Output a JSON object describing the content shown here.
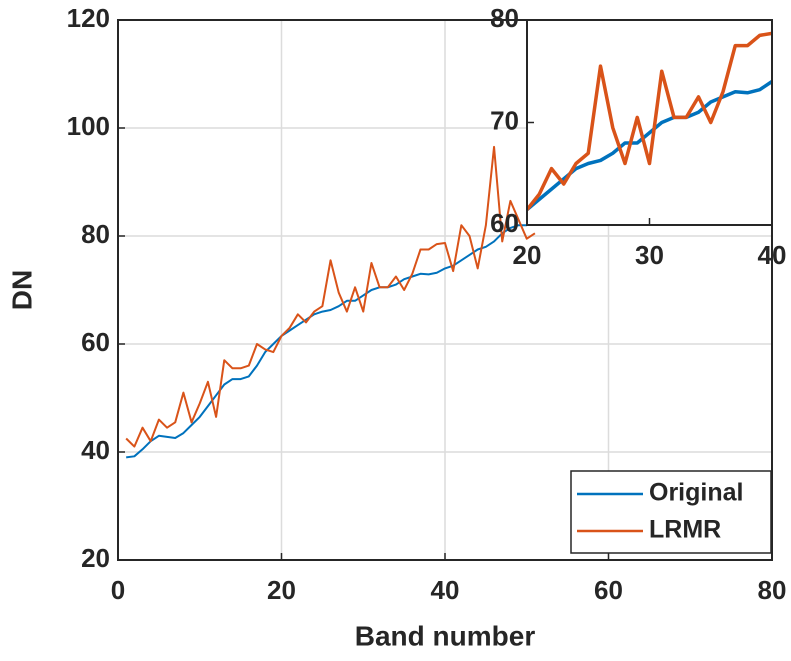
{
  "chart_data": [
    {
      "type": "line",
      "xlabel": "Band number",
      "ylabel": "DN",
      "x": [
        1,
        2,
        3,
        4,
        5,
        6,
        7,
        8,
        9,
        10,
        11,
        12,
        13,
        14,
        15,
        16,
        17,
        18,
        19,
        20,
        21,
        22,
        23,
        24,
        25,
        26,
        27,
        28,
        29,
        30,
        31,
        32,
        33,
        34,
        35,
        36,
        37,
        38,
        39,
        40,
        41,
        42,
        43,
        44,
        45,
        46,
        47,
        48,
        49,
        50,
        51
      ],
      "series": [
        {
          "name": "Original",
          "color": "#0072BD",
          "values": [
            39,
            39.2,
            40.5,
            42,
            43,
            42.8,
            42.6,
            43.5,
            45,
            46.5,
            48.5,
            50.5,
            52.5,
            53.5,
            53.5,
            54,
            56,
            58.5,
            60,
            61.5,
            62.5,
            63.5,
            64.5,
            65.5,
            66,
            66.3,
            67,
            68,
            68,
            69,
            70,
            70.5,
            70.5,
            71,
            72,
            72.5,
            73,
            72.9,
            73.2,
            74,
            74.5,
            75.5,
            76.5,
            77.5,
            78,
            79,
            80.5,
            81.5,
            82,
            82,
            82.5
          ]
        },
        {
          "name": "LRMR",
          "color": "#D95319",
          "values": [
            42.5,
            41,
            44.5,
            42,
            46,
            44.5,
            45.5,
            51,
            45.5,
            49,
            53,
            46.5,
            57,
            55.5,
            55.5,
            56,
            60,
            59,
            58.5,
            61.5,
            63,
            65.5,
            64,
            66,
            67,
            75.5,
            69.5,
            66,
            70.5,
            66,
            75,
            70.5,
            70.5,
            72.5,
            70,
            73,
            77.5,
            77.5,
            78.5,
            78.7,
            73.5,
            82,
            80,
            74,
            82,
            96.5,
            79,
            86.5,
            83,
            79.5,
            80.5
          ]
        }
      ],
      "xlim": [
        0,
        80
      ],
      "xticks": [
        0,
        20,
        40,
        60,
        80
      ],
      "ylim": [
        20,
        120
      ],
      "yticks": [
        20,
        40,
        60,
        80,
        100,
        120
      ],
      "grid": true,
      "legend": "lower right"
    },
    {
      "type": "line",
      "x": [
        20,
        21,
        22,
        23,
        24,
        25,
        26,
        27,
        28,
        29,
        30,
        31,
        32,
        33,
        34,
        35,
        36,
        37,
        38,
        39,
        40
      ],
      "series": [
        {
          "color": "#0072BD",
          "values": [
            61.5,
            62.5,
            63.5,
            64.5,
            65.5,
            66,
            66.3,
            67,
            68,
            68,
            69,
            70,
            70.5,
            70.5,
            71,
            72,
            72.5,
            73,
            72.9,
            73.2,
            74
          ]
        },
        {
          "color": "#D95319",
          "values": [
            61.5,
            63,
            65.5,
            64,
            66,
            67,
            75.5,
            69.5,
            66,
            70.5,
            66,
            75,
            70.5,
            70.5,
            72.5,
            70,
            73,
            77.5,
            77.5,
            78.5,
            78.7
          ]
        }
      ],
      "xlim": [
        20,
        40
      ],
      "xticks": [
        20,
        30,
        40
      ],
      "ylim": [
        60,
        80
      ],
      "yticks": [
        60,
        70,
        80
      ],
      "grid": false
    }
  ]
}
